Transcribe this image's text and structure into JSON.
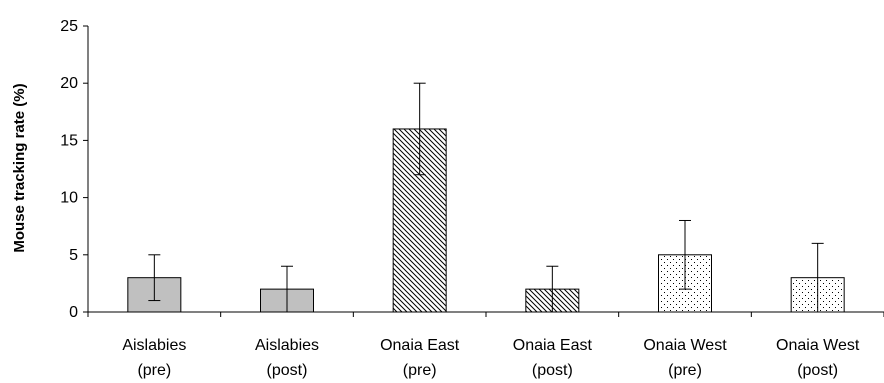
{
  "chart_data": {
    "type": "bar",
    "title": "",
    "xlabel": "",
    "ylabel": "Mouse tracking rate (%)",
    "ylim": [
      0,
      25
    ],
    "yticks": [
      0,
      5,
      10,
      15,
      20,
      25
    ],
    "grid": false,
    "legend": "none",
    "categories": [
      [
        "Aislabies",
        "(pre)"
      ],
      [
        "Aislabies",
        "(post)"
      ],
      [
        "Onaia East",
        "(pre)"
      ],
      [
        "Onaia East",
        "(post)"
      ],
      [
        "Onaia West",
        "(pre)"
      ],
      [
        "Onaia West",
        "(post)"
      ]
    ],
    "values": [
      3,
      2,
      16,
      2,
      5,
      3
    ],
    "error_low": [
      1,
      0,
      12,
      0,
      2,
      0
    ],
    "error_high": [
      5,
      4,
      20,
      4,
      8,
      6
    ],
    "fills": [
      "gray",
      "gray",
      "hatch",
      "hatch",
      "dots",
      "dots"
    ],
    "colors": {
      "gray": "#c0c0c0",
      "stroke": "#000000",
      "background": "#ffffff"
    }
  }
}
